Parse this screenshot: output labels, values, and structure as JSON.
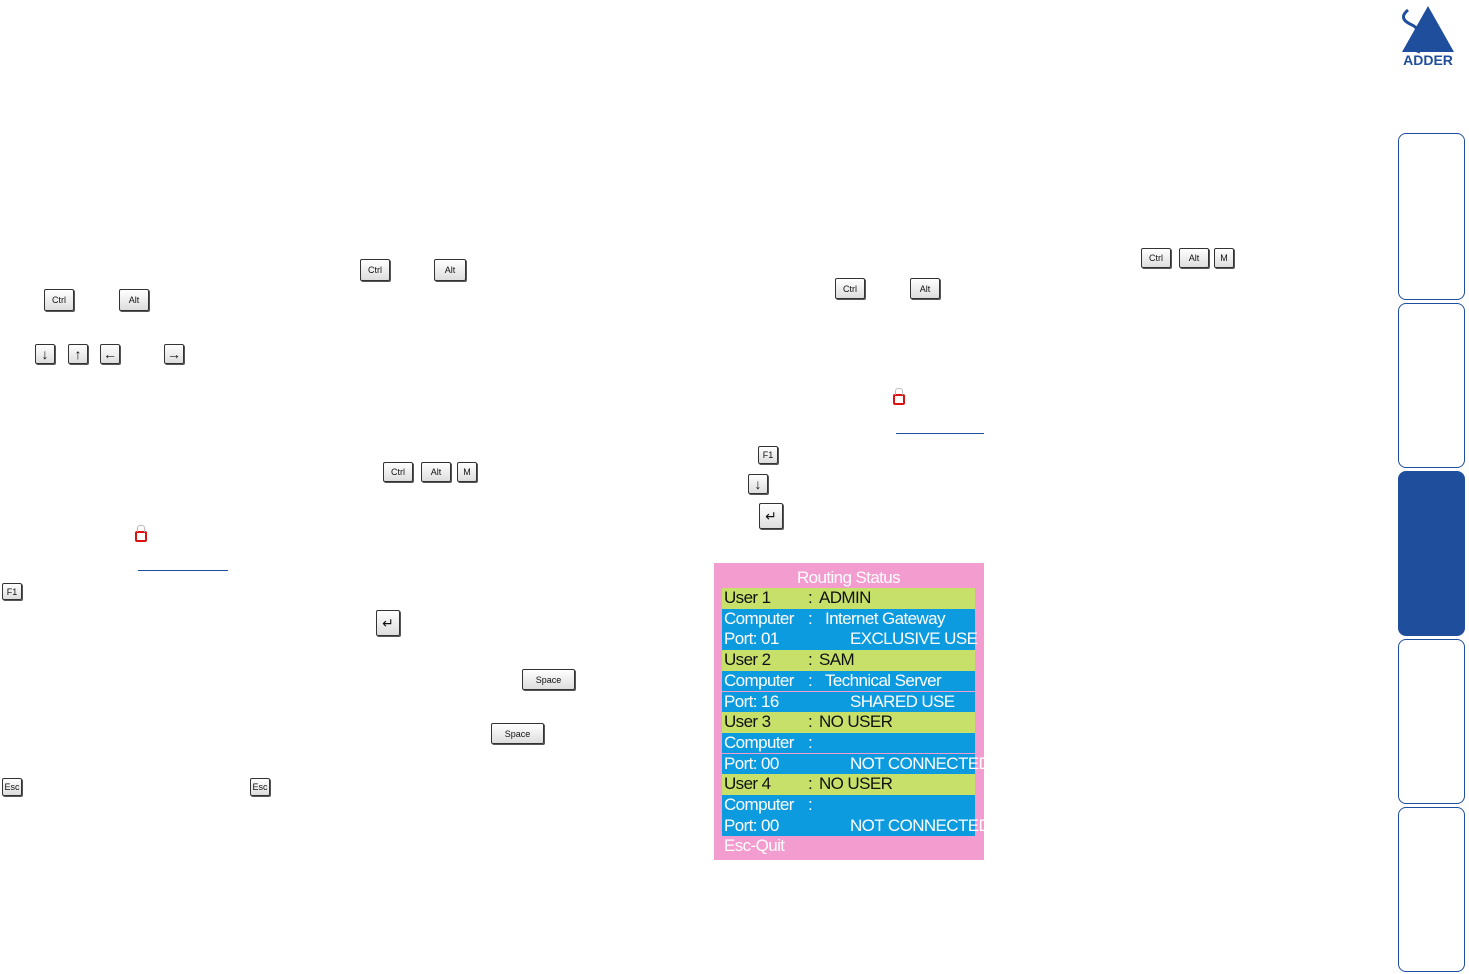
{
  "logo": {
    "text": "ADDER"
  },
  "keys": [
    "Ctrl",
    "Alt",
    "M",
    "F1",
    "Space",
    "Esc",
    "↓",
    "↑",
    "←",
    "→",
    "↵"
  ],
  "routing_status": {
    "title": "Routing Status",
    "separator": ":",
    "entries": [
      {
        "user": "User 1",
        "user_name": "ADMIN",
        "computer": "Computer",
        "computer_name": "Internet Gateway",
        "port": "Port: 01",
        "status": "EXCLUSIVE USE"
      },
      {
        "user": "User 2",
        "user_name": "SAM",
        "computer": "Computer",
        "computer_name": "Technical Server",
        "port": "Port: 16",
        "status": "SHARED USE"
      },
      {
        "user": "User 3",
        "user_name": "NO USER",
        "computer": "Computer",
        "computer_name": null,
        "port": "Port: 00",
        "status": "NOT CONNECTED"
      },
      {
        "user": "User 4",
        "user_name": "NO USER",
        "computer": "Computer",
        "computer_name": null,
        "port": "Port: 00",
        "status": "NOT CONNECTED"
      }
    ],
    "footer": "Esc-Quit"
  }
}
